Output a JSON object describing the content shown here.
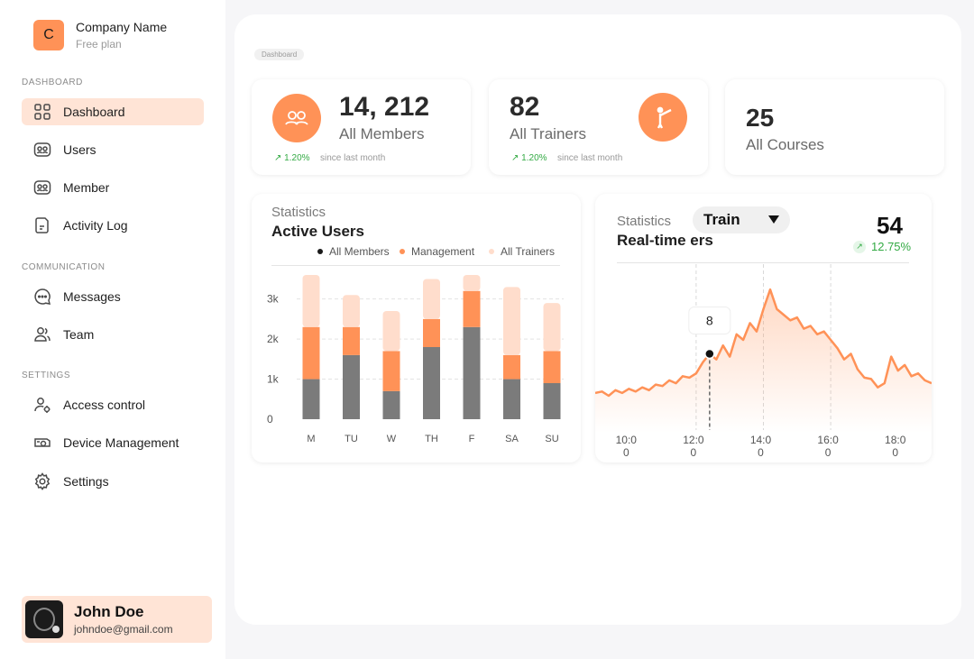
{
  "company": {
    "initial": "C",
    "name": "Company Name",
    "plan": "Free plan"
  },
  "sections": {
    "dashboard": "DASHBOARD",
    "communication": "COMMUNICATION",
    "settings": "SETTINGS"
  },
  "nav": {
    "dashboard": "Dashboard",
    "users": "Users",
    "member": "Member",
    "activity_log": "Activity Log",
    "messages": "Messages",
    "team": "Team",
    "access_control": "Access control",
    "device_management": "Device Management",
    "settings": "Settings"
  },
  "user": {
    "name": "John Doe",
    "email": "johndoe@gmail.com"
  },
  "breadcrumb": "Dashboard",
  "stats": {
    "members": {
      "value": "14, 212",
      "label": "All Members",
      "change": "1.20%",
      "since": "since last month"
    },
    "trainers": {
      "value": "82",
      "label": "All Trainers",
      "change": "1.20%",
      "since": "since last month"
    },
    "courses": {
      "value": "25",
      "label": "All Courses"
    }
  },
  "active_users": {
    "subtitle": "Statistics",
    "title": "Active Users",
    "legend": [
      "All Members",
      "Management",
      "All Trainers"
    ],
    "colors": [
      "#7b7b7b",
      "#ff9257",
      "#ffddcc"
    ]
  },
  "realtime": {
    "subtitle": "Statistics",
    "title": "Real-time",
    "title_tail": "ers",
    "dropdown": "Train",
    "value": "54",
    "change": "12.75%",
    "tooltip": "8",
    "color": "#ff9257"
  },
  "chart_data": [
    {
      "type": "bar",
      "stacked": true,
      "categories": [
        "M",
        "TU",
        "W",
        "TH",
        "F",
        "SA",
        "SU"
      ],
      "series": [
        {
          "name": "All Members",
          "values": [
            1000,
            1600,
            700,
            1800,
            2300,
            1000,
            900
          ]
        },
        {
          "name": "Management",
          "values": [
            1300,
            700,
            1000,
            700,
            900,
            600,
            800
          ]
        },
        {
          "name": "All Trainers",
          "values": [
            1300,
            800,
            1000,
            1000,
            400,
            1700,
            1200
          ]
        }
      ],
      "yticks": [
        "0",
        "1k",
        "2k",
        "3k"
      ],
      "ylim": [
        0,
        3600
      ],
      "grid": true,
      "legend": "top"
    },
    {
      "type": "area",
      "xticks": [
        [
          "10:0",
          "0"
        ],
        [
          "12:0",
          "0"
        ],
        [
          "14:0",
          "0"
        ],
        [
          "16:0",
          "0"
        ],
        [
          "18:0",
          "0"
        ]
      ],
      "x": [
        9.0,
        9.2,
        9.4,
        9.6,
        9.8,
        10.0,
        10.2,
        10.4,
        10.6,
        10.8,
        11.0,
        11.2,
        11.4,
        11.6,
        11.8,
        12.0,
        12.2,
        12.4,
        12.6,
        12.8,
        13.0,
        13.2,
        13.4,
        13.6,
        13.8,
        14.0,
        14.2,
        14.4,
        14.6,
        14.8,
        15.0,
        15.2,
        15.4,
        15.6,
        15.8,
        16.0,
        16.2,
        16.4,
        16.6,
        16.8,
        17.0,
        17.2,
        17.4,
        17.6,
        17.8,
        18.0,
        18.2,
        18.4,
        18.6,
        18.8,
        19.0
      ],
      "y": [
        2.2,
        2.3,
        2.0,
        2.4,
        2.2,
        2.5,
        2.3,
        2.6,
        2.4,
        2.8,
        2.7,
        3.1,
        2.9,
        3.4,
        3.3,
        3.6,
        4.4,
        5.0,
        4.6,
        5.6,
        4.8,
        6.4,
        6.0,
        7.2,
        6.6,
        8.2,
        9.6,
        8.2,
        7.8,
        7.4,
        7.6,
        6.8,
        7.0,
        6.4,
        6.6,
        6.0,
        5.4,
        4.6,
        5.0,
        3.9,
        3.3,
        3.2,
        2.6,
        2.9,
        4.8,
        3.8,
        4.2,
        3.4,
        3.6,
        3.1,
        2.9
      ],
      "highlight": {
        "x": 12.4,
        "y": 5.0,
        "label": "8"
      },
      "guides_x": [
        12.0,
        14.0,
        16.0
      ]
    }
  ]
}
